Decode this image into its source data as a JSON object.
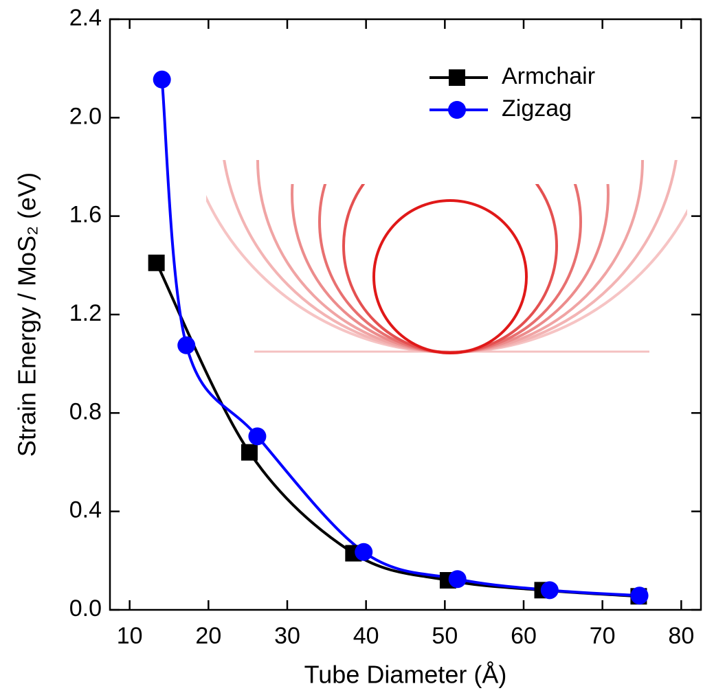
{
  "chart_data": {
    "type": "line",
    "xlabel": "Tube Diameter (Å)",
    "ylabel": "Strain Energy / MoS₂ (eV)",
    "xlim": [
      7.5,
      82.5
    ],
    "xticks": [
      10,
      20,
      30,
      40,
      50,
      60,
      70,
      80
    ],
    "ylim": [
      0,
      2.4
    ],
    "yticks": [
      {
        "value": 0,
        "label": "0.0"
      },
      0.4,
      0.8,
      1.2,
      1.6,
      {
        "value": 2,
        "label": "2.0"
      },
      2.4
    ],
    "legend": "upper right",
    "series": [
      {
        "name": "Armchair",
        "color": "#000000",
        "marker": "square",
        "x": [
          13.4,
          25.2,
          38.4,
          50.4,
          62.4,
          74.6
        ],
        "values": [
          1.41,
          0.64,
          0.23,
          0.12,
          0.08,
          0.055
        ]
      },
      {
        "name": "Zigzag",
        "color": "#0000ff",
        "marker": "circle",
        "x": [
          14.1,
          17.2,
          26.2,
          39.7,
          51.6,
          63.3,
          74.7
        ],
        "values": [
          2.155,
          1.075,
          0.705,
          0.235,
          0.125,
          0.08,
          0.058
        ]
      }
    ]
  }
}
